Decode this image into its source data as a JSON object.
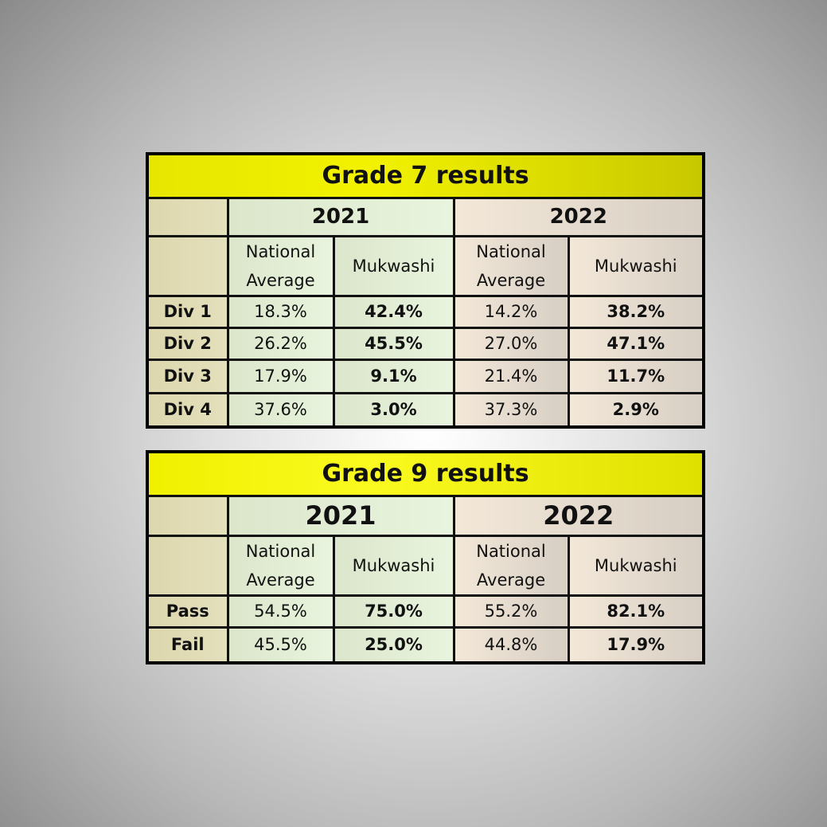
{
  "tables": [
    {
      "title": "Grade 7 results",
      "years": [
        "2021",
        "2022"
      ],
      "subheaders": [
        "National Average",
        "Mukwashi",
        "National Average",
        "Mukwashi"
      ],
      "rows": [
        {
          "label": "Div 1",
          "cells": [
            "18.3%",
            "42.4%",
            "14.2%",
            "38.2%"
          ]
        },
        {
          "label": "Div 2",
          "cells": [
            "26.2%",
            "45.5%",
            "27.0%",
            "47.1%"
          ]
        },
        {
          "label": "Div 3",
          "cells": [
            "17.9%",
            "9.1%",
            "21.4%",
            "11.7%"
          ]
        },
        {
          "label": "Div 4",
          "cells": [
            "37.6%",
            "3.0%",
            "37.3%",
            "2.9%"
          ]
        }
      ]
    },
    {
      "title": "Grade 9 results",
      "years": [
        "2021",
        "2022"
      ],
      "subheaders": [
        "National Average",
        "Mukwashi",
        "National Average",
        "Mukwashi"
      ],
      "rows": [
        {
          "label": "Pass",
          "cells": [
            "54.5%",
            "75.0%",
            "55.2%",
            "82.1%"
          ]
        },
        {
          "label": "Fail",
          "cells": [
            "45.5%",
            "25.0%",
            "44.8%",
            "17.9%"
          ]
        }
      ]
    }
  ]
}
